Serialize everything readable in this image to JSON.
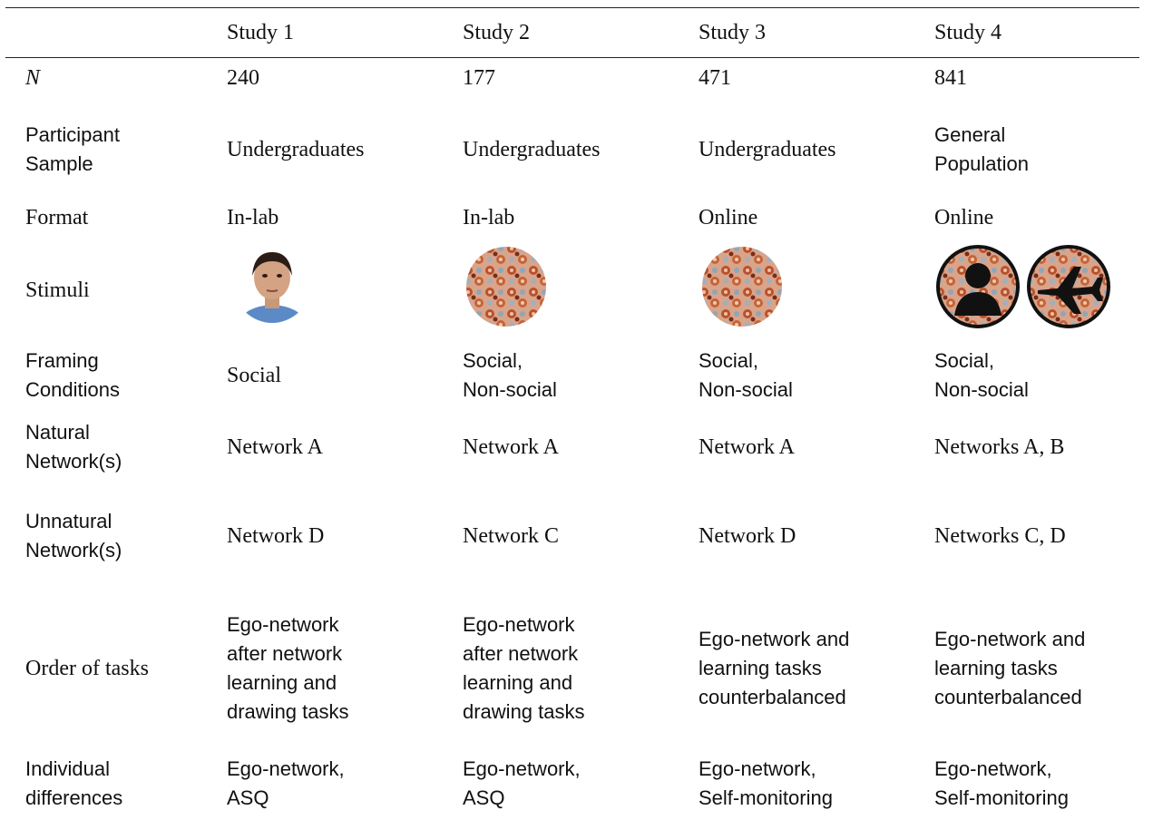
{
  "table": {
    "header": [
      "Study 1",
      "Study 2",
      "Study 3",
      "Study 4"
    ],
    "rows": [
      {
        "label": [
          "N"
        ],
        "cells": [
          [
            "240"
          ],
          [
            "177"
          ],
          [
            "471"
          ],
          [
            "841"
          ]
        ]
      },
      {
        "label": [
          "Participant",
          "Sample"
        ],
        "cells": [
          [
            "Undergraduates"
          ],
          [
            "Undergraduates"
          ],
          [
            "Undergraduates"
          ],
          [
            "General",
            "Population"
          ]
        ]
      },
      {
        "label": [
          "Format"
        ],
        "cells": [
          [
            "In-lab"
          ],
          [
            "In-lab"
          ],
          [
            "Online"
          ],
          [
            "Online"
          ]
        ]
      },
      {
        "label": [
          "Stimuli"
        ]
      },
      {
        "label": [
          "Framing",
          "Conditions"
        ],
        "cells": [
          [
            "Social"
          ],
          [
            "Social,",
            "Non-social"
          ],
          [
            "Social,",
            "Non-social"
          ],
          [
            "Social,",
            "Non-social"
          ]
        ]
      },
      {
        "label": [
          "Natural",
          "Network(s)"
        ],
        "cells": [
          [
            "Network A"
          ],
          [
            "Network A"
          ],
          [
            "Network A"
          ],
          [
            "Networks A, B"
          ]
        ]
      },
      {
        "label": [
          "Unnatural",
          "Network(s)"
        ],
        "cells": [
          [
            "Network D"
          ],
          [
            "Network C"
          ],
          [
            "Network D"
          ],
          [
            "Networks C, D"
          ]
        ]
      },
      {
        "label": [
          "Order of tasks"
        ],
        "cells": [
          [
            "Ego-network",
            "after network",
            "learning and",
            "drawing tasks"
          ],
          [
            "Ego-network",
            "after network",
            "learning and",
            "drawing tasks"
          ],
          [
            "Ego-network and",
            "learning tasks",
            "counterbalanced"
          ],
          [
            "Ego-network and",
            "learning tasks",
            "counterbalanced"
          ]
        ]
      },
      {
        "label": [
          "Individual",
          "differences"
        ],
        "cells": [
          [
            "Ego-network,",
            "ASQ"
          ],
          [
            "Ego-network,",
            "ASQ"
          ],
          [
            "Ego-network,",
            "Self-monitoring"
          ],
          [
            "Ego-network,",
            "Self-monitoring"
          ]
        ]
      }
    ]
  }
}
